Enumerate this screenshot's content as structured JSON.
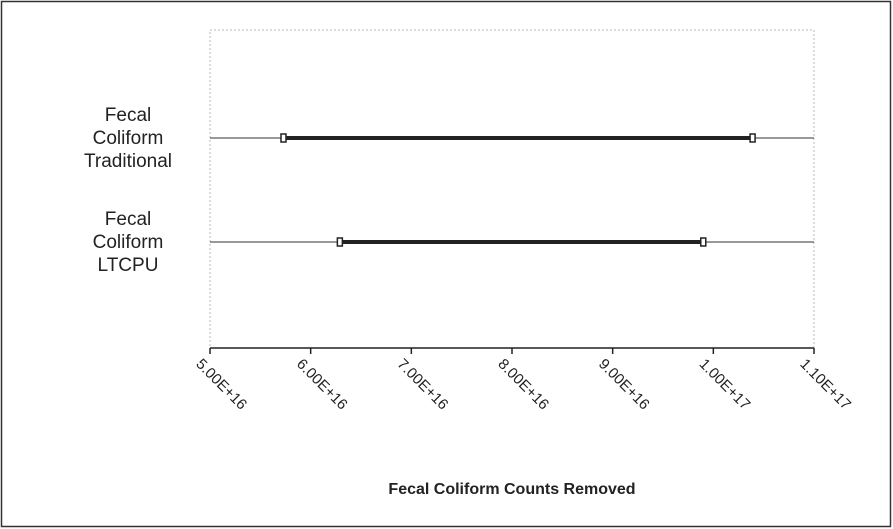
{
  "chart_data": {
    "type": "range",
    "categories": [
      "Fecal Coliform Traditional",
      "Fecal Coliform LTCPU"
    ],
    "low": [
      5.73e+16,
      6.29e+16
    ],
    "high": [
      1.039e+17,
      9.9e+16
    ],
    "color": "#222222",
    "x_label": "Fecal Coliform Counts Removed",
    "xlim": [
      5e+16,
      1.1e+17
    ],
    "xticks": [
      {
        "value": 5e+16,
        "label": "5.00E+16"
      },
      {
        "value": 6e+16,
        "label": "6.00E+16"
      },
      {
        "value": 7e+16,
        "label": "7.00E+16"
      },
      {
        "value": 8e+16,
        "label": "8.00E+16"
      },
      {
        "value": 9e+16,
        "label": "9.00E+16"
      },
      {
        "value": 1e+17,
        "label": "1.00E+17"
      },
      {
        "value": 1.1e+17,
        "label": "1.10E+17"
      }
    ]
  }
}
